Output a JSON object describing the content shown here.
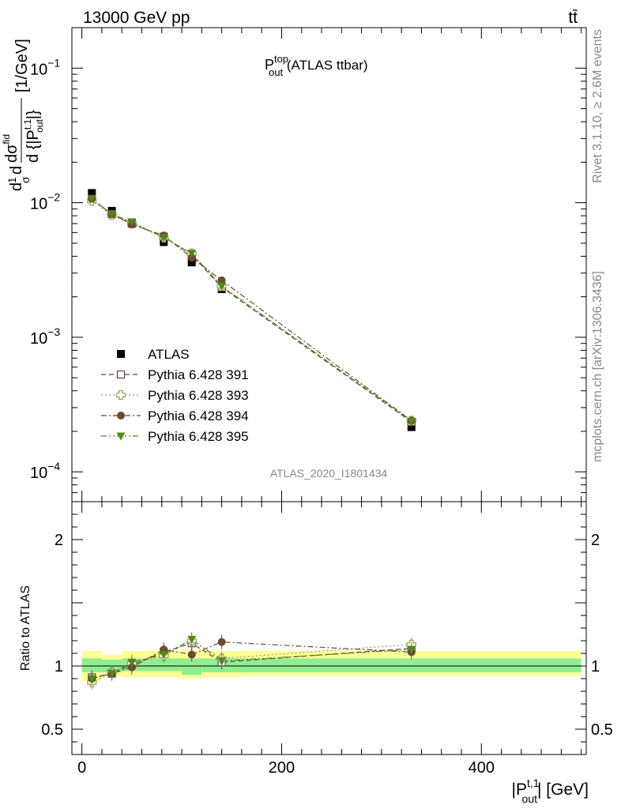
{
  "header": {
    "energy_label": "13000 GeV pp",
    "process_label": "tt̄"
  },
  "side_text": {
    "rivet": "Rivet 3.1.10, ≥ 2.6M events",
    "mcplots": "mcplots.cern.ch [arXiv:1306.3436]"
  },
  "chart_data": [
    {
      "type": "scatter",
      "title": {
        "main": "P",
        "sup": "top",
        "sub": "out",
        "suffix": " (ATLAS ttbar)"
      },
      "watermark": "ATLAS_2020_I1801434",
      "yscale": "log",
      "ylim": [
        6e-05,
        0.2
      ],
      "xlim": [
        -10,
        505
      ],
      "ylabel": {
        "frac1_num": "1",
        "frac1_den": "σ",
        "d": "d",
        "frac2_num": "dσ",
        "frac2_num_sup": "fid",
        "frac2_den": "d {|P",
        "frac2_den_sub": "out",
        "frac2_den_sup": "t,1",
        "frac2_den_close": "|}",
        "unit": "[1/GeV]"
      },
      "yticks": [
        {
          "value": 0.1,
          "base": "10",
          "exp": "−1"
        },
        {
          "value": 0.01,
          "base": "10",
          "exp": "−2"
        },
        {
          "value": 0.001,
          "base": "10",
          "exp": "−3"
        },
        {
          "value": 0.0001,
          "base": "10",
          "exp": "−4"
        }
      ],
      "x": [
        10,
        30,
        50,
        82,
        110,
        140,
        330
      ],
      "series": [
        {
          "name": "ATLAS",
          "color": "#000000",
          "marker": "square-filled",
          "line": "none",
          "values": [
            0.0118,
            0.0087,
            0.007,
            0.0051,
            0.0036,
            0.00228,
            0.000215
          ]
        },
        {
          "name": "Pythia 6.428 391",
          "color": "#6b3d54",
          "marker": "square-open",
          "line": "dash",
          "values": [
            0.0107,
            0.0082,
            0.007,
            0.0056,
            0.0041,
            0.00235,
            0.000235
          ]
        },
        {
          "name": "Pythia 6.428 393",
          "color": "#a09a52",
          "marker": "cross-open",
          "line": "dot",
          "values": [
            0.0103,
            0.0081,
            0.007,
            0.0055,
            0.0042,
            0.0024,
            0.00024
          ]
        },
        {
          "name": "Pythia 6.428 394",
          "color": "#6b4a2e",
          "marker": "circle-filled",
          "line": "dashdot",
          "values": [
            0.0107,
            0.0082,
            0.0069,
            0.0057,
            0.0039,
            0.00265,
            0.00024
          ]
        },
        {
          "name": "Pythia 6.428 395",
          "color": "#4e8a1c",
          "marker": "triangle-down-filled",
          "line": "dashdotdot",
          "values": [
            0.0107,
            0.0082,
            0.0072,
            0.0055,
            0.0042,
            0.0024,
            0.000238
          ]
        }
      ]
    },
    {
      "type": "scatter",
      "ylabel": "Ratio to ATLAS",
      "ylim": [
        0.3,
        2.3
      ],
      "xlim": [
        -10,
        505
      ],
      "yticks": [
        {
          "value": 0.5,
          "label": "0.5"
        },
        {
          "value": 1,
          "label": "1"
        },
        {
          "value": 2,
          "label": "2"
        }
      ],
      "xticks": [
        {
          "value": 0,
          "label": "0"
        },
        {
          "value": 200,
          "label": "200"
        },
        {
          "value": 400,
          "label": "400"
        }
      ],
      "xlabel": {
        "main": "|P",
        "sup": "t,1",
        "sub": "out",
        "suffix": "| [GeV]"
      },
      "bands": {
        "edges": [
          0,
          20,
          40,
          60,
          100,
          120,
          160,
          500
        ],
        "yellow": [
          [
            0.88,
            1.12
          ],
          [
            0.92,
            1.09
          ],
          [
            0.91,
            1.12
          ],
          [
            0.91,
            1.12
          ],
          [
            0.9,
            1.13
          ],
          [
            0.91,
            1.12
          ],
          [
            0.92,
            1.12
          ]
        ],
        "green": [
          [
            0.95,
            1.06
          ],
          [
            0.95,
            1.05
          ],
          [
            0.96,
            1.06
          ],
          [
            0.96,
            1.06
          ],
          [
            0.93,
            1.06
          ],
          [
            0.95,
            1.06
          ],
          [
            0.95,
            1.06
          ]
        ],
        "yellow_color": "#ffff99",
        "green_color": "#90ee90"
      },
      "x": [
        10,
        30,
        50,
        82,
        110,
        140,
        330
      ],
      "series": [
        {
          "name": "Pythia 6.428 391",
          "color": "#6b3d54",
          "marker": "square-open",
          "line": "dash",
          "values": [
            0.91,
            0.94,
            1.01,
            1.11,
            1.18,
            1.03,
            1.14
          ]
        },
        {
          "name": "Pythia 6.428 393",
          "color": "#a09a52",
          "marker": "cross-open",
          "line": "dot",
          "values": [
            0.87,
            0.95,
            1.02,
            1.08,
            1.2,
            1.06,
            1.17
          ]
        },
        {
          "name": "Pythia 6.428 394",
          "color": "#6b4a2e",
          "marker": "circle-filled",
          "line": "dashdot",
          "values": [
            0.9,
            0.94,
            0.99,
            1.13,
            1.09,
            1.19,
            1.11
          ]
        },
        {
          "name": "Pythia 6.428 395",
          "color": "#4e8a1c",
          "marker": "triangle-down-filled",
          "line": "dashdotdot",
          "values": [
            0.9,
            0.94,
            1.03,
            1.09,
            1.21,
            1.04,
            1.13
          ]
        }
      ]
    }
  ]
}
